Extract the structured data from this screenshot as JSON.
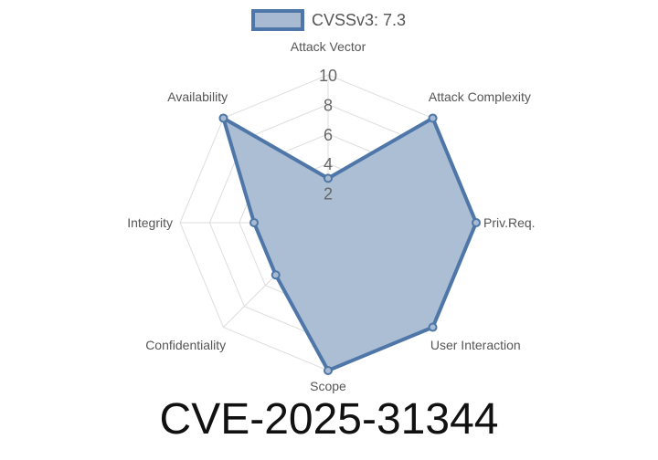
{
  "chart_data": {
    "type": "radar",
    "title": "CVE-2025-31344",
    "axes": [
      "Attack Vector",
      "Attack Complexity",
      "Priv.Req.",
      "User Interaction",
      "Scope",
      "Confidentiality",
      "Integrity",
      "Availability"
    ],
    "series": [
      {
        "name": "CVSSv3: 7.3",
        "values": [
          3,
          10,
          10,
          10,
          10,
          5,
          5,
          10
        ]
      }
    ],
    "rlim": [
      0,
      10
    ],
    "ticks": [
      "2",
      "4",
      "6",
      "8",
      "10"
    ],
    "tick_values": [
      2,
      4,
      6,
      8,
      10
    ],
    "legend_position": "top",
    "grid": true,
    "colors": {
      "line": "#4e76a8",
      "fill": "#a7bad2",
      "grid": "#dddddd",
      "text": "#666666"
    }
  }
}
